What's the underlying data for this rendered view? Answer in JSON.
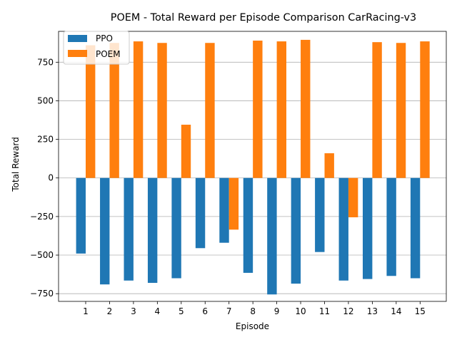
{
  "chart_data": {
    "type": "bar",
    "title": "POEM - Total Reward per Episode Comparison CarRacing-v3",
    "xlabel": "Episode",
    "ylabel": "Total Reward",
    "categories": [
      "1",
      "2",
      "3",
      "4",
      "5",
      "6",
      "7",
      "8",
      "9",
      "10",
      "11",
      "12",
      "13",
      "14",
      "15"
    ],
    "series": [
      {
        "name": "PPO",
        "color": "#1f77b4",
        "values": [
          -490,
          -690,
          -665,
          -680,
          -650,
          -455,
          -420,
          -615,
          -755,
          -685,
          -480,
          -665,
          -655,
          -635,
          -650
        ]
      },
      {
        "name": "POEM",
        "color": "#ff7f0e",
        "values": [
          860,
          875,
          885,
          875,
          345,
          875,
          -335,
          890,
          885,
          895,
          160,
          -255,
          880,
          875,
          885
        ]
      }
    ],
    "ylim": [
      -800,
      950
    ],
    "yticks": [
      -750,
      -500,
      -250,
      0,
      250,
      500,
      750
    ],
    "grid": "y",
    "legend_position": "top-left"
  }
}
